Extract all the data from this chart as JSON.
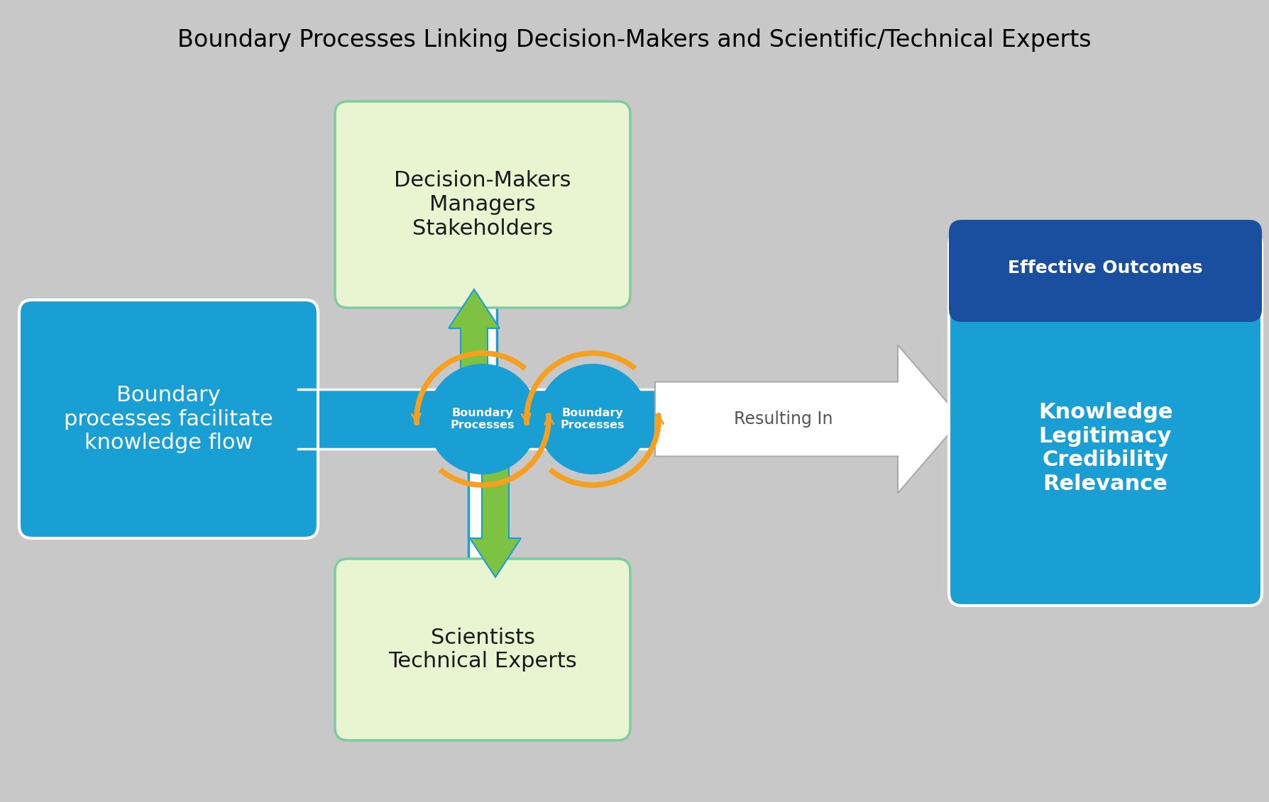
{
  "title": "Boundary Processes Linking Decision-Makers and Scientific/Technical Experts",
  "title_fontsize": 24,
  "bg_color": "#c8c8c8",
  "blue_color": "#1a9fd4",
  "dark_blue": "#1a4fa0",
  "green_arrow": "#7dc242",
  "orange_arrow": "#f5a020",
  "white": "#ffffff",
  "light_green_box": "#e8f5d0",
  "green_border": "#7ecba0",
  "left_box_text": "Boundary\nprocesses facilitate\nknowledge flow",
  "top_box_text": "Decision-Makers\nManagers\nStakeholders",
  "bottom_box_text": "Scientists\nTechnical Experts",
  "circle_text": "Boundary\nProcesses",
  "resulting_in": "Resulting In",
  "outcome_header": "Effective Outcomes",
  "outcome_body": "Knowledge\nLegitimacy\nCredibility\nRelevance"
}
